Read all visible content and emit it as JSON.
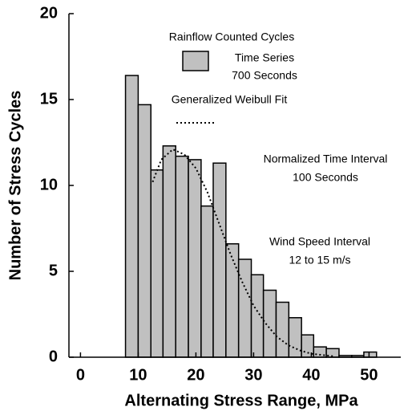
{
  "chart_data": {
    "type": "histogram",
    "xlabel": "Alternating Stress Range, MPa",
    "ylabel": "Number of Stress Cycles",
    "xlim": [
      -2,
      55.5
    ],
    "ylim": [
      0,
      20
    ],
    "xticks": [
      0,
      10,
      20,
      30,
      40,
      50
    ],
    "yticks": [
      0,
      5,
      10,
      15,
      20
    ],
    "bins": [
      7.8,
      10,
      12.2,
      14.3,
      16.5,
      18.7,
      20.9,
      23,
      25.2,
      27.4,
      29.6,
      31.7,
      33.9,
      36.1,
      38.3,
      40.4,
      42.6,
      44.8,
      47,
      49.1,
      51.3
    ],
    "series": [
      {
        "name": [
          "Time Series",
          "700 Seconds"
        ],
        "color": "#c0c0c0",
        "values": [
          16.4,
          14.7,
          10.9,
          12.3,
          11.7,
          11.5,
          8.8,
          11.3,
          6.6,
          5.7,
          4.8,
          3.9,
          3.2,
          2.3,
          1.3,
          0.6,
          0.5,
          0.1,
          0.1,
          0.3
        ]
      },
      {
        "name": "Generalized Weibull Fit",
        "type": "line",
        "color": "#000000",
        "x": [
          12.5,
          14,
          16,
          18,
          20,
          22,
          24,
          26,
          28,
          30,
          32,
          34,
          36,
          38,
          40,
          44
        ],
        "values": [
          10.2,
          11.5,
          12.1,
          11.8,
          11,
          9.6,
          7.8,
          6,
          4.4,
          3,
          2,
          1.2,
          0.7,
          0.4,
          0.2,
          0.05
        ]
      }
    ],
    "annotations": [
      "Rainflow Counted Cycles",
      "Normalized Time Interval",
      "100 Seconds",
      "Wind Speed Interval",
      "12 to 15 m/s"
    ]
  }
}
